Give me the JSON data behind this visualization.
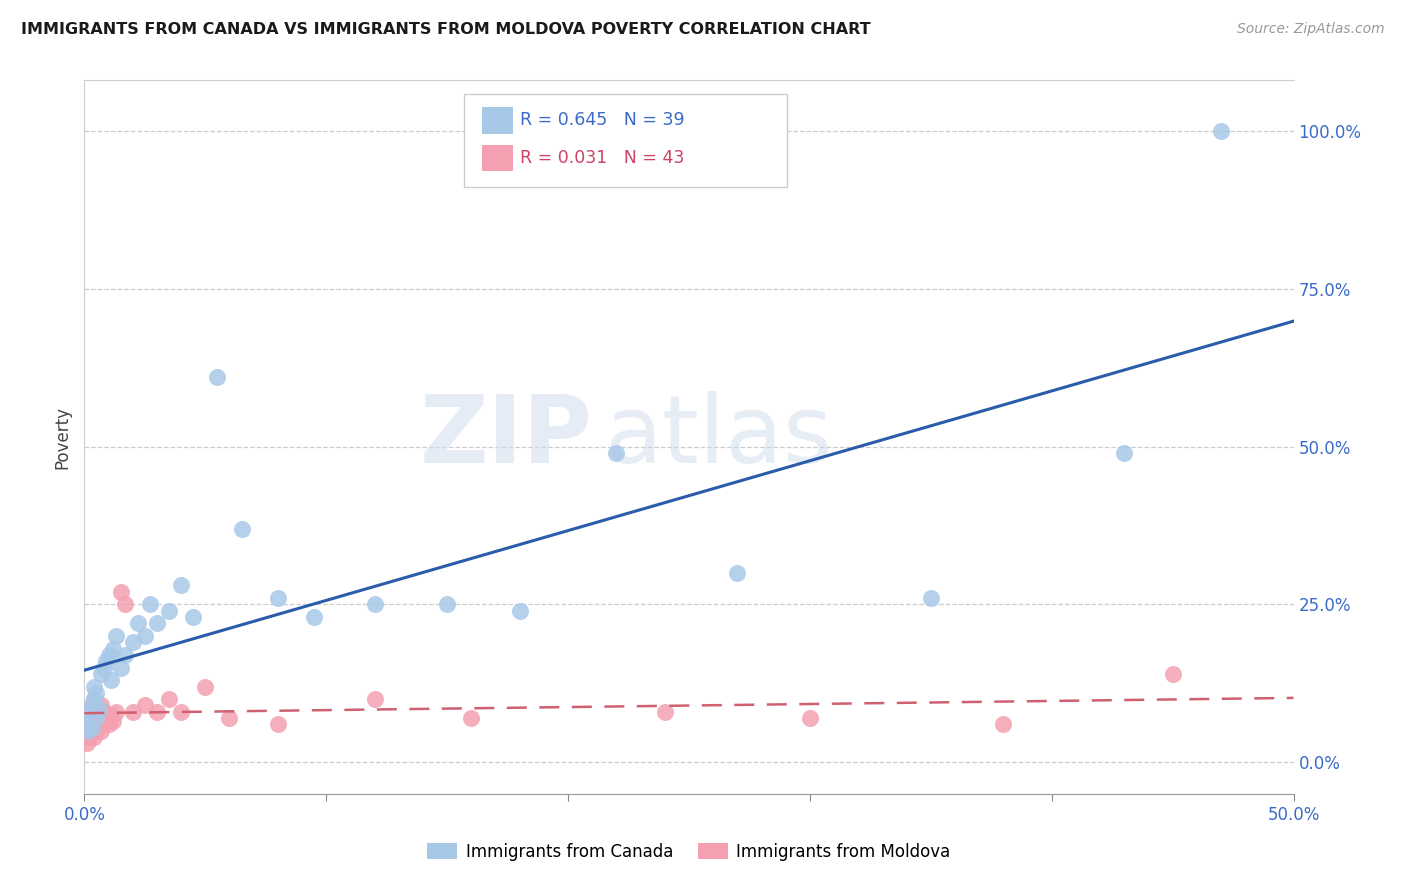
{
  "title": "IMMIGRANTS FROM CANADA VS IMMIGRANTS FROM MOLDOVA POVERTY CORRELATION CHART",
  "source": "Source: ZipAtlas.com",
  "ylabel": "Poverty",
  "xlim": [
    0.0,
    0.5
  ],
  "ylim": [
    -0.05,
    1.08
  ],
  "yticks": [
    0.0,
    0.25,
    0.5,
    0.75,
    1.0
  ],
  "ytick_labels": [
    "0.0%",
    "25.0%",
    "50.0%",
    "75.0%",
    "100.0%"
  ],
  "xtick_labels_shown": [
    "0.0%",
    "50.0%"
  ],
  "xtick_positions_shown": [
    0.0,
    0.5
  ],
  "xtick_minor_positions": [
    0.1,
    0.2,
    0.3,
    0.4
  ],
  "canada_R": 0.645,
  "canada_N": 39,
  "moldova_R": 0.031,
  "moldova_N": 43,
  "canada_color": "#a8c8e8",
  "moldova_color": "#f4a0b0",
  "canada_line_color": "#2a5caa",
  "moldova_line_color": "#d06070",
  "background_color": "#ffffff",
  "watermark_zip": "ZIP",
  "watermark_atlas": "atlas",
  "canada_x": [
    0.001,
    0.002,
    0.002,
    0.003,
    0.003,
    0.004,
    0.004,
    0.005,
    0.005,
    0.006,
    0.007,
    0.008,
    0.009,
    0.01,
    0.011,
    0.012,
    0.013,
    0.015,
    0.017,
    0.02,
    0.022,
    0.025,
    0.027,
    0.03,
    0.035,
    0.04,
    0.045,
    0.055,
    0.065,
    0.08,
    0.095,
    0.12,
    0.15,
    0.18,
    0.22,
    0.27,
    0.35,
    0.43,
    0.47
  ],
  "canada_y": [
    0.05,
    0.065,
    0.08,
    0.055,
    0.09,
    0.1,
    0.12,
    0.07,
    0.11,
    0.085,
    0.14,
    0.15,
    0.16,
    0.17,
    0.13,
    0.18,
    0.2,
    0.15,
    0.17,
    0.19,
    0.22,
    0.2,
    0.25,
    0.22,
    0.24,
    0.28,
    0.23,
    0.61,
    0.37,
    0.26,
    0.23,
    0.25,
    0.25,
    0.24,
    0.49,
    0.3,
    0.26,
    0.49,
    1.0
  ],
  "moldova_x": [
    0.001,
    0.001,
    0.001,
    0.001,
    0.002,
    0.002,
    0.002,
    0.002,
    0.003,
    0.003,
    0.003,
    0.004,
    0.004,
    0.004,
    0.005,
    0.005,
    0.006,
    0.006,
    0.007,
    0.007,
    0.008,
    0.008,
    0.009,
    0.01,
    0.011,
    0.012,
    0.013,
    0.015,
    0.017,
    0.02,
    0.025,
    0.03,
    0.035,
    0.04,
    0.05,
    0.06,
    0.08,
    0.12,
    0.16,
    0.24,
    0.3,
    0.38,
    0.45
  ],
  "moldova_y": [
    0.06,
    0.04,
    0.05,
    0.03,
    0.06,
    0.04,
    0.07,
    0.08,
    0.05,
    0.06,
    0.09,
    0.04,
    0.07,
    0.1,
    0.05,
    0.08,
    0.06,
    0.07,
    0.05,
    0.09,
    0.06,
    0.08,
    0.07,
    0.06,
    0.075,
    0.065,
    0.08,
    0.27,
    0.25,
    0.08,
    0.09,
    0.08,
    0.1,
    0.08,
    0.12,
    0.07,
    0.06,
    0.1,
    0.07,
    0.08,
    0.07,
    0.06,
    0.14
  ]
}
